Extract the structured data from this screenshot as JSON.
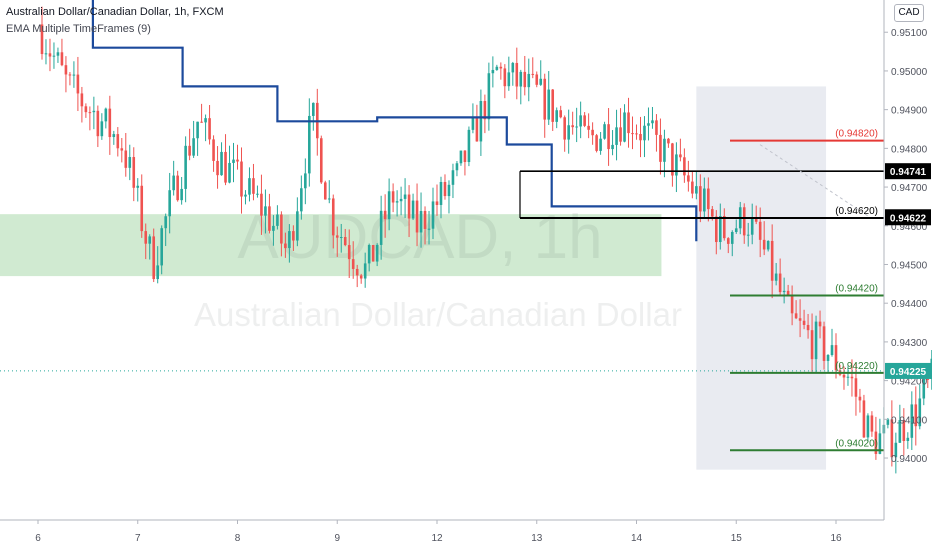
{
  "header": {
    "title": "Australian Dollar/Canadian Dollar, 1h, FXCM",
    "indicator": "EMA Multiple TimeFrames (9)"
  },
  "currency_badge": "CAD",
  "watermark": {
    "symbol": "AUDCAD, 1h",
    "description": "Australian Dollar/Canadian Dollar"
  },
  "chart_data": {
    "type": "candlestick",
    "symbol": "AUDCAD",
    "timeframe": "1h",
    "y_axis": {
      "range": [
        0.9392,
        0.9516
      ],
      "ticks": [
        "0.95100",
        "0.95000",
        "0.94900",
        "0.94800",
        "0.94700",
        "0.94600",
        "0.94500",
        "0.94400",
        "0.94300",
        "0.94200",
        "0.94100",
        "0.94000"
      ]
    },
    "x_axis": {
      "ticks": [
        "6",
        "7",
        "8",
        "9",
        "12",
        "13",
        "14",
        "15",
        "16"
      ]
    },
    "close_path": [
      [
        6.0,
        0.9512
      ],
      [
        6.3,
        0.9496
      ],
      [
        6.6,
        0.9488
      ],
      [
        6.85,
        0.9481
      ],
      [
        7.15,
        0.945
      ],
      [
        7.4,
        0.9472
      ],
      [
        7.6,
        0.9487
      ],
      [
        7.8,
        0.9478
      ],
      [
        8.05,
        0.947
      ],
      [
        8.3,
        0.9463
      ],
      [
        8.5,
        0.9453
      ],
      [
        8.75,
        0.9488
      ],
      [
        8.95,
        0.9462
      ],
      [
        9.15,
        0.9453
      ],
      [
        9.3,
        0.9448
      ],
      [
        9.55,
        0.9468
      ],
      [
        9.8,
        0.946
      ],
      [
        10.2,
        0.9472
      ],
      [
        10.6,
        0.95
      ],
      [
        11.0,
        0.9494
      ],
      [
        11.5,
        0.9482
      ],
      [
        11.9,
        0.9488
      ],
      [
        12.25,
        0.948
      ],
      [
        12.55,
        0.947
      ],
      [
        12.85,
        0.9458
      ],
      [
        13.1,
        0.9462
      ],
      [
        13.3,
        0.9452
      ],
      [
        13.55,
        0.9435
      ],
      [
        13.9,
        0.9428
      ],
      [
        14.15,
        0.942
      ],
      [
        14.35,
        0.9405
      ],
      [
        14.55,
        0.9405
      ],
      [
        14.8,
        0.9412
      ],
      [
        15.05,
        0.9425
      ],
      [
        15.3,
        0.9424
      ],
      [
        15.5,
        0.9412
      ],
      [
        15.7,
        0.9426
      ],
      [
        15.8,
        0.94225
      ]
    ],
    "ema_steps": [
      [
        6.55,
        0.9525
      ],
      [
        6.55,
        0.9506
      ],
      [
        7.45,
        0.9506
      ],
      [
        7.45,
        0.9496
      ],
      [
        8.4,
        0.9496
      ],
      [
        8.4,
        0.9487
      ],
      [
        9.4,
        0.9487
      ],
      [
        9.4,
        0.9488
      ],
      [
        10.7,
        0.9488
      ],
      [
        10.7,
        0.9481
      ],
      [
        11.15,
        0.9481
      ],
      [
        11.15,
        0.9465
      ],
      [
        12.6,
        0.9465
      ],
      [
        12.6,
        0.9456
      ]
    ],
    "bull_color": "#26a69a",
    "bear_color": "#ef5350",
    "ema_color": "#1c4a9c",
    "levels": [
      {
        "label": "(0.94820)",
        "value": 0.9482,
        "color": "#e53935"
      },
      {
        "label": "(0.94620)",
        "value": 0.9462,
        "color": "#000000"
      },
      {
        "label": "(0.94420)",
        "value": 0.9442,
        "color": "#2e7d32"
      },
      {
        "label": "(0.94220)",
        "value": 0.9422,
        "color": "#2e7d32"
      },
      {
        "label": "(0.94020)",
        "value": 0.9402,
        "color": "#2e7d32"
      }
    ],
    "black_line_value": 0.94741,
    "price_tags": [
      {
        "text": "0.94741",
        "value": 0.94741,
        "bg": "#000000"
      },
      {
        "text": "0.94622",
        "value": 0.94622,
        "bg": "#000000"
      },
      {
        "text": "0.94225",
        "value": 0.94225,
        "bg": "#26a69a"
      }
    ],
    "current_price": 0.94225,
    "zones": [
      {
        "name": "left-demand-zone",
        "x": [
          5.6,
          12.25
        ],
        "y": [
          0.9447,
          0.9463
        ],
        "color": "#c8e6c9"
      },
      {
        "name": "right-target-zone",
        "x": [
          15.05,
          16.6
        ],
        "y": [
          0.9461,
          0.9474
        ],
        "color": "#c8e6c9"
      },
      {
        "name": "grey-range",
        "x": [
          12.6,
          13.9
        ],
        "y": [
          0.9397,
          0.9496
        ],
        "color": "#e0e3eb"
      }
    ]
  }
}
